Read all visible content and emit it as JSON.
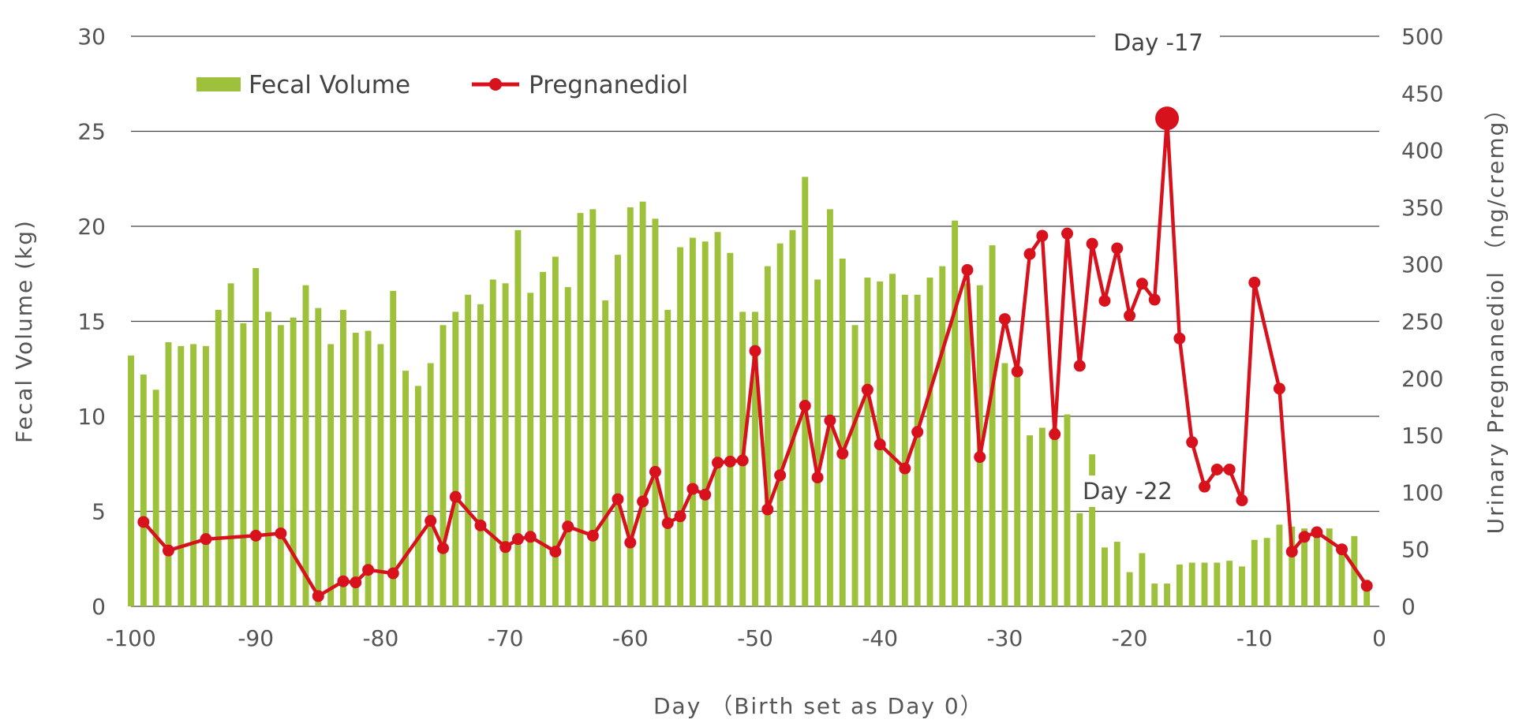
{
  "chart_data": {
    "type": "bar+line",
    "xlabel": "Day （Birth set as Day 0）",
    "ylabel_left": "Fecal Volume (kg)",
    "ylabel_right": "Urinary Pregnanediol （ng/cremg）",
    "xlim": [
      -100,
      0
    ],
    "ylim_left": [
      0,
      30
    ],
    "ylim_right": [
      0,
      500
    ],
    "x_ticks": [
      "-100",
      "-90",
      "-80",
      "-70",
      "-60",
      "-50",
      "-40",
      "-30",
      "-20",
      "-10",
      "0"
    ],
    "y_left_ticks": [
      "0",
      "5",
      "10",
      "15",
      "20",
      "25",
      "30"
    ],
    "y_right_ticks": [
      "0",
      "50",
      "100",
      "150",
      "200",
      "250",
      "300",
      "350",
      "400",
      "450",
      "500"
    ],
    "grid": true,
    "legend_position": "top-left",
    "colors": {
      "bars": "#9dc13a",
      "line": "#d7121c",
      "grid": "#444444",
      "text": "#555555"
    },
    "series": [
      {
        "name": "Fecal Volume",
        "type": "bar",
        "axis": "left",
        "x": [
          -100,
          -99,
          -98,
          -97,
          -96,
          -95,
          -94,
          -93,
          -92,
          -91,
          -90,
          -89,
          -88,
          -87,
          -86,
          -85,
          -84,
          -83,
          -82,
          -81,
          -80,
          -79,
          -78,
          -77,
          -76,
          -75,
          -74,
          -73,
          -72,
          -71,
          -70,
          -69,
          -68,
          -67,
          -66,
          -65,
          -64,
          -63,
          -62,
          -61,
          -60,
          -59,
          -58,
          -57,
          -56,
          -55,
          -54,
          -53,
          -52,
          -51,
          -50,
          -49,
          -48,
          -47,
          -46,
          -45,
          -44,
          -43,
          -42,
          -41,
          -40,
          -39,
          -38,
          -37,
          -36,
          -35,
          -34,
          -33,
          -32,
          -31,
          -30,
          -29,
          -28,
          -27,
          -26,
          -25,
          -24,
          -23,
          -22,
          -21,
          -20,
          -19,
          -18,
          -17,
          -16,
          -15,
          -14,
          -13,
          -12,
          -11,
          -10,
          -9,
          -8,
          -7,
          -6,
          -5,
          -4,
          -3,
          -2,
          -1
        ],
        "values": [
          13.2,
          12.2,
          11.4,
          13.9,
          13.7,
          13.8,
          13.7,
          15.6,
          17.0,
          14.9,
          17.8,
          15.5,
          14.8,
          15.2,
          16.9,
          15.7,
          13.8,
          15.6,
          14.4,
          14.5,
          13.8,
          16.6,
          12.4,
          11.6,
          12.8,
          14.8,
          15.5,
          16.4,
          15.9,
          17.2,
          17.0,
          19.8,
          16.5,
          17.6,
          18.4,
          16.8,
          20.7,
          20.9,
          16.1,
          18.5,
          21.0,
          21.3,
          20.4,
          15.6,
          18.9,
          19.4,
          19.2,
          19.7,
          18.6,
          15.5,
          15.5,
          17.9,
          19.1,
          19.8,
          22.6,
          17.2,
          20.9,
          18.3,
          14.8,
          17.3,
          17.1,
          17.5,
          16.4,
          16.4,
          17.3,
          17.9,
          20.3,
          17.0,
          16.9,
          19.0,
          12.8,
          12.3,
          9.0,
          9.4,
          9.4,
          10.1,
          4.9,
          8.0,
          3.1,
          3.4,
          1.8,
          2.8,
          1.2,
          1.2,
          2.2,
          2.3,
          2.3,
          2.3,
          2.4,
          2.1,
          3.5,
          3.6,
          4.3,
          4.2,
          4.1,
          4.1,
          4.1,
          3.1,
          3.7,
          1.4
        ]
      },
      {
        "name": "Pregnanediol",
        "type": "line",
        "axis": "right",
        "x": [
          -99,
          -97,
          -94,
          -90,
          -88,
          -85,
          -83,
          -82,
          -81,
          -79,
          -76,
          -75,
          -74,
          -72,
          -70,
          -69,
          -68,
          -66,
          -65,
          -63,
          -61,
          -60,
          -59,
          -58,
          -57,
          -56,
          -55,
          -54,
          -53,
          -52,
          -51,
          -50,
          -49,
          -48,
          -46,
          -45,
          -44,
          -43,
          -41,
          -40,
          -38,
          -37,
          -33,
          -32,
          -30,
          -29,
          -28,
          -27,
          -26,
          -25,
          -24,
          -23,
          -22,
          -21,
          -20,
          -19,
          -18,
          -17,
          -16,
          -15,
          -14,
          -13,
          -12,
          -11,
          -10,
          -8,
          -7,
          -6,
          -5,
          -3,
          -1
        ],
        "values": [
          74,
          49,
          59,
          62,
          64,
          9,
          22,
          21,
          32,
          29,
          75,
          51,
          96,
          71,
          52,
          59,
          61,
          48,
          70,
          62,
          94,
          56,
          92,
          118,
          73,
          79,
          103,
          98,
          126,
          127,
          128,
          224,
          85,
          115,
          176,
          113,
          163,
          134,
          190,
          142,
          121,
          153,
          295,
          131,
          252,
          206,
          309,
          325,
          151,
          327,
          211,
          318,
          268,
          314,
          255,
          283,
          269,
          428,
          235,
          144,
          105,
          120,
          120,
          93,
          284,
          191,
          48,
          61,
          65,
          50,
          18
        ]
      }
    ],
    "annotations": [
      {
        "text": "Day -17",
        "x": -17
      },
      {
        "text": "Day -22",
        "x": -22
      }
    ]
  }
}
